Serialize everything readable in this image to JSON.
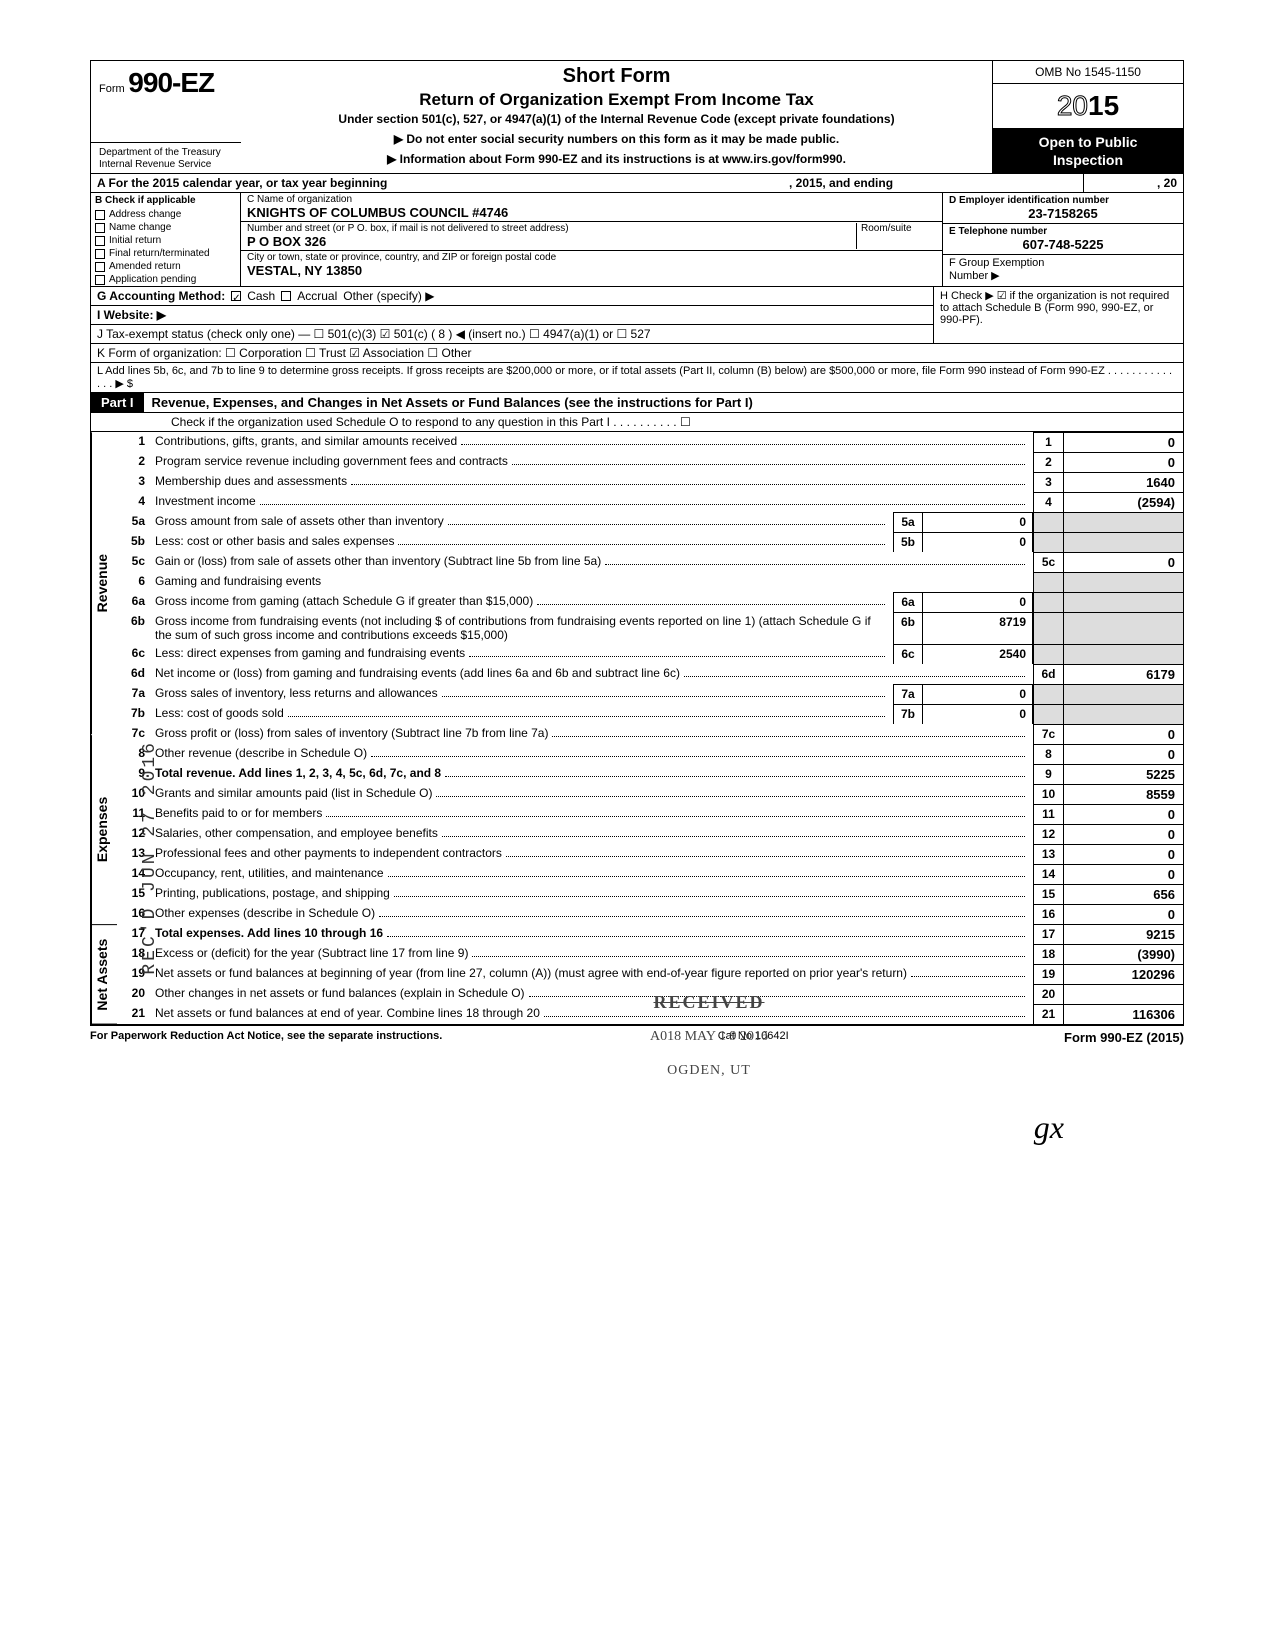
{
  "form": {
    "form_prefix": "Form",
    "form_number": "990-EZ",
    "dept": "Department of the Treasury\nInternal Revenue Service",
    "title_main": "Short Form",
    "title_sub": "Return of Organization Exempt From Income Tax",
    "title_under": "Under section 501(c), 527, or 4947(a)(1) of the Internal Revenue Code (except private foundations)",
    "arrow1": "▶ Do not enter social security numbers on this form as it may be made public.",
    "arrow2": "▶ Information about Form 990-EZ and its instructions is at www.irs.gov/form990.",
    "omb": "OMB No 1545-1150",
    "year": "2015",
    "open": "Open to Public\nInspection"
  },
  "rowA": {
    "a": "A  For the 2015 calendar year, or tax year beginning",
    "end": ", 2015, and ending",
    "twenty": ", 20"
  },
  "sectionB": {
    "hdr": "B  Check if applicable",
    "items": [
      "Address change",
      "Name change",
      "Initial return",
      "Final return/terminated",
      "Amended return",
      "Application pending"
    ]
  },
  "sectionC": {
    "name_lbl": "C  Name of organization",
    "name_val": "KNIGHTS OF COLUMBUS COUNCIL #4746",
    "street_lbl": "Number and street (or P O. box, if mail is not delivered to street address)",
    "room_lbl": "Room/suite",
    "street_val": "P O BOX 326",
    "city_lbl": "City or town, state or province, country, and ZIP or foreign postal code",
    "city_val": "VESTAL, NY 13850"
  },
  "sectionD": {
    "ein_lbl": "D Employer identification number",
    "ein_val": "23-7158265",
    "tel_lbl": "E  Telephone number",
    "tel_val": "607-748-5225",
    "grp_lbl": "F  Group Exemption\n    Number ▶"
  },
  "rowG": {
    "g": "G  Accounting Method:",
    "cash": "Cash",
    "accrual": "Accrual",
    "other": "Other (specify) ▶",
    "h": "H  Check ▶ ☑ if the organization is not required to attach Schedule B (Form 990, 990-EZ, or 990-PF)."
  },
  "rowI": "I   Website: ▶",
  "rowJ": {
    "j": "J  Tax-exempt status (check only one) — ☐ 501(c)(3)   ☑ 501(c) (  8  ) ◀ (insert no.)  ☐ 4947(a)(1) or   ☐ 527"
  },
  "rowK": "K  Form of organization:   ☐ Corporation      ☐ Trust            ☑ Association      ☐ Other",
  "rowL": "L  Add lines 5b, 6c, and 7b to line 9 to determine gross receipts. If gross receipts are $200,000 or more, or if total assets (Part II, column (B) below) are $500,000 or more, file Form 990 instead of Form 990-EZ . . . . . . . . . . . . . . ▶  $",
  "part1": {
    "tag": "Part I",
    "title": "Revenue, Expenses, and Changes in Net Assets or Fund Balances (see the instructions for Part I)",
    "sub": "Check if the organization used Schedule O to respond to any question in this Part I  . . . . . . . . . . ☐"
  },
  "side": {
    "rev": "Revenue",
    "exp": "Expenses",
    "na": "Net Assets"
  },
  "lines": {
    "1": {
      "d": "Contributions, gifts, grants, and similar amounts received",
      "r": "1",
      "v": "0"
    },
    "2": {
      "d": "Program service revenue including government fees and contracts",
      "r": "2",
      "v": "0"
    },
    "3": {
      "d": "Membership dues and assessments",
      "r": "3",
      "v": "1640"
    },
    "4": {
      "d": "Investment income",
      "r": "4",
      "v": "(2594)"
    },
    "5a": {
      "d": "Gross amount from sale of assets other than inventory",
      "b": "5a",
      "bv": "0"
    },
    "5b": {
      "d": "Less: cost or other basis and sales expenses",
      "b": "5b",
      "bv": "0"
    },
    "5c": {
      "d": "Gain or (loss) from sale of assets other than inventory (Subtract line 5b from line 5a)",
      "r": "5c",
      "v": "0"
    },
    "6": {
      "d": "Gaming and fundraising events"
    },
    "6a": {
      "d": "Gross income from gaming (attach Schedule G if greater than $15,000)",
      "b": "6a",
      "bv": "0"
    },
    "6b": {
      "d": "Gross income from fundraising events (not including  $              of contributions from fundraising events reported on line 1) (attach Schedule G if the sum of such gross income and contributions exceeds $15,000)",
      "b": "6b",
      "bv": "8719"
    },
    "6c": {
      "d": "Less: direct expenses from gaming and fundraising events",
      "b": "6c",
      "bv": "2540"
    },
    "6d": {
      "d": "Net income or (loss) from gaming and fundraising events (add lines 6a and 6b and subtract line 6c)",
      "r": "6d",
      "v": "6179"
    },
    "7a": {
      "d": "Gross sales of inventory, less returns and allowances",
      "b": "7a",
      "bv": "0"
    },
    "7b": {
      "d": "Less: cost of goods sold",
      "b": "7b",
      "bv": "0"
    },
    "7c": {
      "d": "Gross profit or (loss) from sales of inventory (Subtract line 7b from line 7a)",
      "r": "7c",
      "v": "0"
    },
    "8": {
      "d": "Other revenue (describe in Schedule O)",
      "r": "8",
      "v": "0"
    },
    "9": {
      "d": "Total revenue. Add lines 1, 2, 3, 4, 5c, 6d, 7c, and 8",
      "r": "9",
      "v": "5225",
      "bold": true
    },
    "10": {
      "d": "Grants and similar amounts paid (list in Schedule O)",
      "r": "10",
      "v": "8559"
    },
    "11": {
      "d": "Benefits paid to or for members",
      "r": "11",
      "v": "0"
    },
    "12": {
      "d": "Salaries, other compensation, and employee benefits",
      "r": "12",
      "v": "0"
    },
    "13": {
      "d": "Professional fees and other payments to independent contractors",
      "r": "13",
      "v": "0"
    },
    "14": {
      "d": "Occupancy, rent, utilities, and maintenance",
      "r": "14",
      "v": "0"
    },
    "15": {
      "d": "Printing, publications, postage, and shipping",
      "r": "15",
      "v": "656"
    },
    "16": {
      "d": "Other expenses (describe in Schedule O)",
      "r": "16",
      "v": "0"
    },
    "17": {
      "d": "Total expenses. Add lines 10 through 16",
      "r": "17",
      "v": "9215",
      "bold": true
    },
    "18": {
      "d": "Excess or (deficit) for the year (Subtract line 17 from line 9)",
      "r": "18",
      "v": "(3990)"
    },
    "19": {
      "d": "Net assets or fund balances at beginning of year (from line 27, column (A)) (must agree with end-of-year figure reported on prior year's return)",
      "r": "19",
      "v": "120296"
    },
    "20": {
      "d": "Other changes in net assets or fund balances (explain in Schedule O)",
      "r": "20",
      "v": ""
    },
    "21": {
      "d": "Net assets or fund balances at end of year. Combine lines 18 through 20",
      "r": "21",
      "v": "116306"
    }
  },
  "stamps": {
    "vert": "REC'D JUN 27 2016",
    "received": "RECEIVED",
    "received_sub": "A018   MAY 1 9 2016",
    "received_sub2": "OGDEN, UT"
  },
  "footer": {
    "left": "For Paperwork Reduction Act Notice, see the separate instructions.",
    "mid": "Cat  No  10642I",
    "right": "Form 990-EZ (2015)"
  },
  "sig": "gx"
}
